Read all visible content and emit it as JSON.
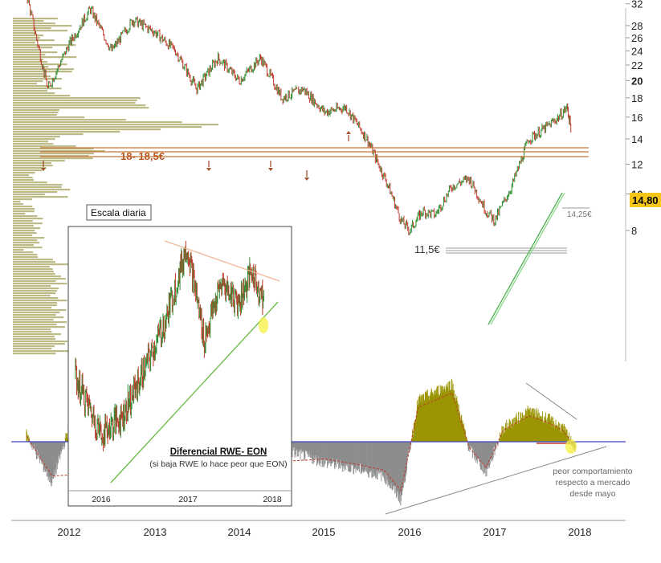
{
  "main_chart": {
    "price_axis": {
      "scale": "log",
      "ticks": [
        {
          "value": 32,
          "label": "32"
        },
        {
          "value": 28,
          "label": "28"
        },
        {
          "value": 26,
          "label": "26"
        },
        {
          "value": 24,
          "label": "24"
        },
        {
          "value": 22,
          "label": "22"
        },
        {
          "value": 20,
          "label": "20"
        },
        {
          "value": 18,
          "label": "18"
        },
        {
          "value": 16,
          "label": "16"
        },
        {
          "value": 14,
          "label": "14"
        },
        {
          "value": 12,
          "label": "12"
        },
        {
          "value": 10,
          "label": "10"
        },
        {
          "value": 8,
          "label": "8"
        }
      ],
      "bold_labels": [
        "20",
        "10"
      ]
    },
    "last_price_label": "14,80",
    "support_zone_label": "18- 18,5€",
    "resistance_label": "11,5€",
    "low_label": "14,25€",
    "scale_box_label": "Escala diaria",
    "x_axis_labels": [
      "2012",
      "2013",
      "2014",
      "2015",
      "2016",
      "2017",
      "2018"
    ],
    "colors": {
      "up_candle": "#2e8b2e",
      "down_candle": "#c0392b",
      "support_lines": "#c87533",
      "volume_profile": "#b5b27a",
      "price_badge": "#f5c518",
      "trend_line": "#4caf50"
    }
  },
  "inset_chart": {
    "title": "Diferencial RWE- EON",
    "subtitle": "(si baja RWE lo hace peor que EON)",
    "x_labels": [
      "2016",
      "2017",
      "2018"
    ]
  },
  "oscillator": {
    "annotation_line1": "peor comportamiento",
    "annotation_line2": "respecto a mercado",
    "annotation_line3": "desde mayo",
    "positive_color": "#9a9400",
    "negative_color": "#8c8c8c",
    "zero_line_color": "#3c46c8"
  },
  "chart_data": [
    {
      "type": "line",
      "title": "",
      "scale": "log",
      "ylim": [
        7,
        36
      ],
      "x": [
        2011.5,
        2011.75,
        2012.0,
        2012.25,
        2012.5,
        2012.75,
        2013.0,
        2013.25,
        2013.5,
        2013.75,
        2014.0,
        2014.25,
        2014.5,
        2014.75,
        2015.0,
        2015.25,
        2015.5,
        2015.75,
        2015.9,
        2016.0,
        2016.15,
        2016.3,
        2016.5,
        2016.7,
        2016.9,
        2017.0,
        2017.2,
        2017.4,
        2017.6,
        2017.75,
        2017.85,
        2017.9
      ],
      "values": [
        34,
        19,
        25,
        31,
        24,
        29,
        27,
        24,
        19,
        23,
        20,
        23,
        18,
        19,
        16.5,
        17,
        14,
        10.5,
        8.5,
        8,
        9,
        8.8,
        10.5,
        11,
        9,
        8.5,
        10.5,
        14,
        15,
        16,
        17,
        14.8
      ],
      "horizontal_levels": [
        18,
        18.5,
        11.5
      ],
      "last_price": 14.8,
      "recent_low": 14.25
    },
    {
      "type": "line",
      "title": "Diferencial RWE- EON",
      "x": [
        2015.7,
        2016.0,
        2016.25,
        2016.5,
        2016.75,
        2017.0,
        2017.2,
        2017.4,
        2017.6,
        2017.75,
        2017.9
      ],
      "values": [
        0.6,
        0.45,
        0.5,
        0.62,
        0.75,
        0.95,
        0.7,
        0.85,
        0.8,
        0.88,
        0.8
      ]
    },
    {
      "type": "area",
      "title": "",
      "x": [
        2011.5,
        2011.8,
        2012.0,
        2012.3,
        2012.6,
        2013.0,
        2013.4,
        2014.0,
        2014.5,
        2015.0,
        2015.4,
        2015.7,
        2015.9,
        2016.1,
        2016.5,
        2016.7,
        2016.9,
        2017.1,
        2017.4,
        2017.6,
        2017.8,
        2017.95
      ],
      "values": [
        0.1,
        -0.6,
        0.2,
        0.25,
        -0.3,
        0.1,
        0.1,
        0.1,
        -0.1,
        -0.3,
        -0.4,
        -0.5,
        -0.85,
        0.6,
        0.85,
        -0.1,
        -0.45,
        0.2,
        0.45,
        0.35,
        0.2,
        -0.1
      ]
    }
  ]
}
